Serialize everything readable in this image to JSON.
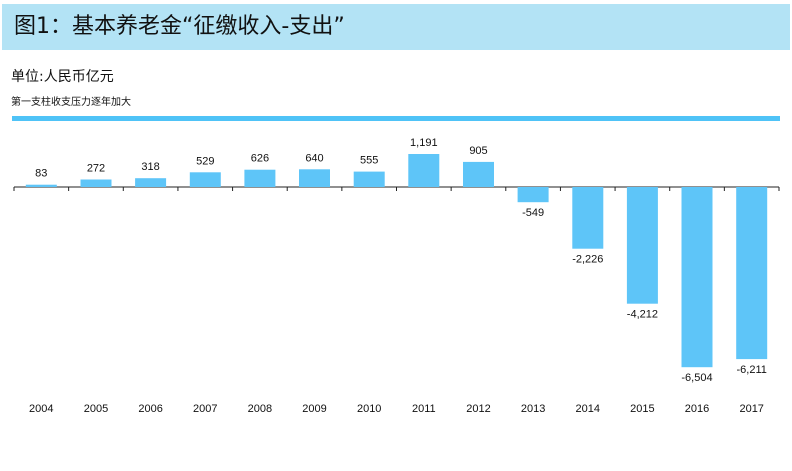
{
  "header": {
    "title": "图1：基本养老金“征缴收入-支出”",
    "unit": "单位:人民币亿元",
    "subtitle": "第一支柱收支压力逐年加大"
  },
  "colors": {
    "bar": "#5ec5f8",
    "title_band": "#b3e3f5",
    "rule": "#4fc3f7",
    "axis": "#222222"
  },
  "chart_data": {
    "type": "bar",
    "title": "图1：基本养老金“征缴收入-支出”",
    "subtitle": "第一支柱收支压力逐年加大",
    "ylabel": "单位:人民币亿元",
    "xlabel": "",
    "categories": [
      "2004",
      "2005",
      "2006",
      "2007",
      "2008",
      "2009",
      "2010",
      "2011",
      "2012",
      "2013",
      "2014",
      "2015",
      "2016",
      "2017"
    ],
    "values": [
      83,
      272,
      318,
      529,
      626,
      640,
      555,
      1191,
      905,
      -549,
      -2226,
      -4212,
      -6504,
      -6211
    ],
    "value_labels": [
      "83",
      "272",
      "318",
      "529",
      "626",
      "640",
      "555",
      "1,191",
      "905",
      "-549",
      "-2,226",
      "-4,212",
      "-6,504",
      "-6,211"
    ],
    "ylim": [
      -6504,
      1191
    ],
    "grid": false,
    "legend": "none"
  }
}
